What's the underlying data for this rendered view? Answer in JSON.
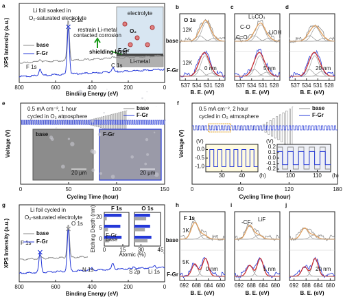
{
  "panels": {
    "a": {
      "letter": "a",
      "labels": [
        "Li foil soaked in",
        "O₂-saturated electrolyte",
        "O 1s",
        "F 1s",
        "C 1s",
        "base",
        "F-Gr",
        "restrain Li-metal",
        "contacted corrosion",
        "electrolyte",
        "O₂",
        "shielding layer",
        "F-Gr",
        "Li-metal"
      ],
      "xlabel": "Binding Energy (eV)",
      "ylabel": "XPS Intensity (a.u.)",
      "xlim": [
        800,
        0
      ],
      "xticks": [
        800,
        600,
        400,
        200,
        0
      ]
    },
    "b": {
      "letter": "b",
      "labels": [
        "O 1s",
        "12K",
        "base",
        "12K",
        "F-Gr",
        "0 nm"
      ]
    },
    "c": {
      "letter": "c",
      "labels": [
        "Li₂CO₃",
        "C-O",
        "C=O",
        "LiOH",
        "5 nm"
      ]
    },
    "d": {
      "letter": "d",
      "labels": [
        "20 nm"
      ]
    },
    "bcd": {
      "xlabel": "B. E. (eV)",
      "xlim": [
        538.5,
        526.5
      ],
      "xticks": [
        537,
        534,
        531,
        528
      ]
    },
    "e": {
      "letter": "e",
      "labels": [
        "0.5 mA cm⁻², 1 hour",
        "cycled in O₂ atmosphere",
        "base",
        "F-Gr",
        "base",
        "F-Gr",
        "20 μm",
        "20 μm"
      ],
      "xlabel": "Cycling Time  (hour)",
      "ylabel": "Voltage (V)",
      "xlim": [
        0,
        150
      ],
      "xticks": [
        0,
        50,
        100,
        150
      ]
    },
    "f": {
      "letter": "f",
      "labels": [
        "0.5 mA cm⁻², 2 hour",
        "cycled in O₂ atmosphere",
        "base",
        "F-Gr",
        "(V)",
        "(h)",
        "(V)",
        "(h)"
      ],
      "xlabel": "Cycling Time (hour)",
      "ylabel": "Voltage (V)",
      "xlim": [
        0,
        180
      ],
      "xticks": [
        0,
        60,
        120,
        180
      ],
      "inset1": {
        "xlim": [
          22,
          48
        ],
        "xticks": [
          30,
          40
        ],
        "ylim": [
          -1.3,
          0.3
        ],
        "yticks": [
          {
            "value": 0,
            "label": "0.0"
          },
          -0.5,
          {
            "value": -1,
            "label": "-1.0"
          }
        ]
      },
      "inset2": {
        "xlim": [
          95,
          115
        ],
        "xticks": [
          100,
          110
        ],
        "ylim": [
          -0.25,
          0.25
        ],
        "yticks": [
          0.2,
          0.1,
          {
            "value": 0,
            "label": "0.0"
          },
          -0.1,
          -0.2
        ]
      }
    },
    "g": {
      "letter": "g",
      "labels": [
        "Li foil cycled in",
        "O₂-saturated electrolyte",
        "O 1s",
        "F 1s",
        "C 1s",
        "N 1s",
        "S 2p",
        "Li 1s",
        "base",
        "F-Gr"
      ],
      "xlabel": "Binding Energy (eV)",
      "ylabel": "XPS Intensity (a.u.)",
      "xlim": [
        800,
        0
      ],
      "xticks": [
        800,
        600,
        400,
        200,
        0
      ],
      "inset": {
        "F_title": "F 1s",
        "O_title": "O 1s",
        "ylabel": "Etching Depth (nm)",
        "xlabel": "Atomic (%)",
        "depths": [
          20,
          5,
          0
        ],
        "F_xlim": [
          0,
          20
        ],
        "F_xticks": [
          0,
          15
        ],
        "O_xlim": [
          25,
          45
        ],
        "O_xticks": [
          30,
          45
        ],
        "series": [
          {
            "name": "F-Gr",
            "color": "#2438d8",
            "F": [
              14,
              13,
              14
            ],
            "O": [
              37,
              37,
              38
            ]
          },
          {
            "name": "base",
            "color": "#a8a8a8",
            "F": [
              2,
              3,
              4
            ],
            "O": [
              34,
              33,
              35
            ]
          }
        ]
      }
    },
    "h": {
      "letter": "h",
      "labels": [
        "F 1s",
        "1K",
        "base",
        "5K",
        "F-Gr",
        "0 nm"
      ]
    },
    "i": {
      "letter": "i",
      "labels": [
        "-CFₓ",
        "LiF",
        "5 nm"
      ]
    },
    "j": {
      "letter": "j",
      "labels": [
        "20 nm"
      ]
    },
    "hij": {
      "xlabel": "B. E. (eV)",
      "xlim": [
        693.5,
        678.5
      ],
      "xticks": [
        692,
        688,
        684,
        680
      ]
    }
  }
}
